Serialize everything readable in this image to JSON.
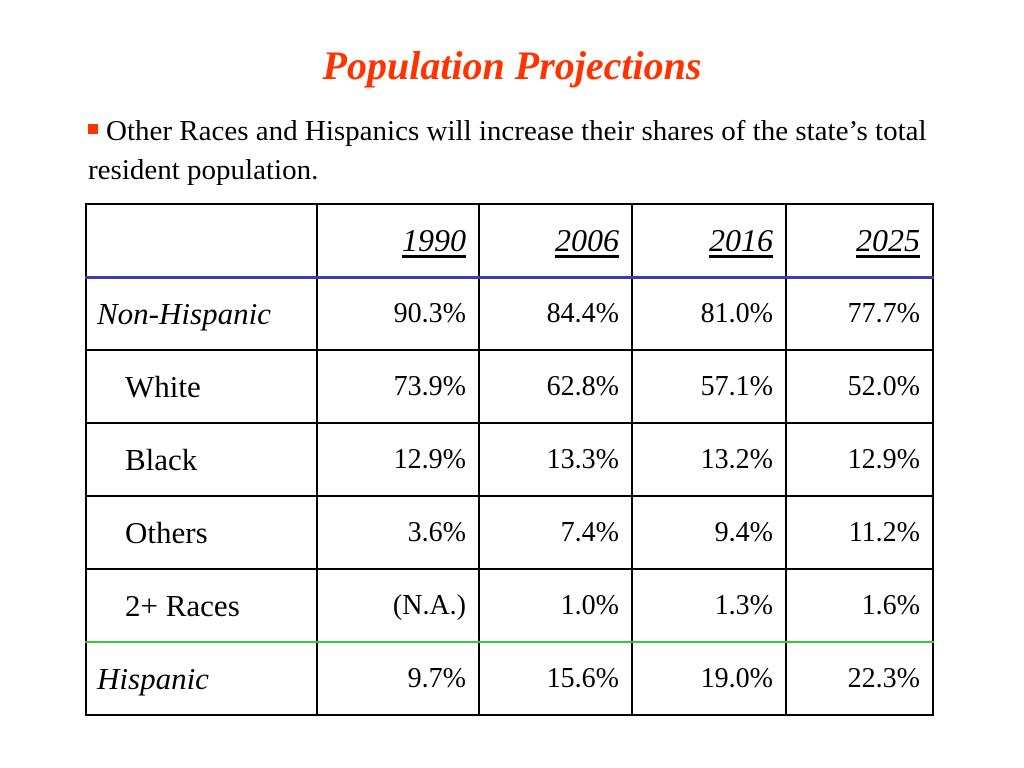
{
  "colors": {
    "title": "#ff3300",
    "bullet": "#ff3300",
    "header_rule": "#3b3bb3",
    "hispanic_rule": "#33cc33"
  },
  "title": "Population Projections",
  "bullet": {
    "icon": "square-bullet-icon",
    "text": "Other Races and Hispanics will increase their shares of the state’s total resident population."
  },
  "table": {
    "years": [
      "1990",
      "2006",
      "2016",
      "2025"
    ],
    "rows": [
      {
        "label": "Non-Hispanic",
        "values": [
          "90.3%",
          "84.4%",
          "81.0%",
          "77.7%"
        ]
      },
      {
        "label": "White",
        "values": [
          "73.9%",
          "62.8%",
          "57.1%",
          "52.0%"
        ]
      },
      {
        "label": "Black",
        "values": [
          "12.9%",
          "13.3%",
          "13.2%",
          "12.9%"
        ]
      },
      {
        "label": "Others",
        "values": [
          "3.6%",
          "7.4%",
          "9.4%",
          "11.2%"
        ]
      },
      {
        "label": "2+ Races",
        "values": [
          "(N.A.)",
          "1.0%",
          "1.3%",
          "1.6%"
        ]
      },
      {
        "label": "Hispanic",
        "values": [
          "9.7%",
          "15.6%",
          "19.0%",
          "22.3%"
        ]
      }
    ]
  }
}
